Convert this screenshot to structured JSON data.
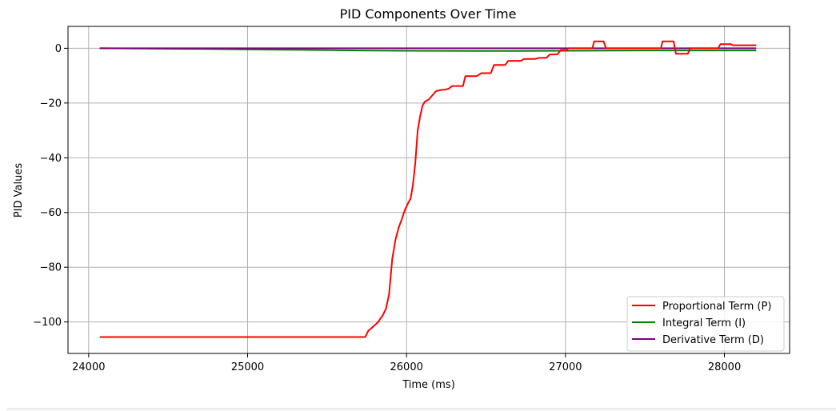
{
  "chart_data": {
    "type": "line",
    "title": "PID Components Over Time",
    "xlabel": "Time (ms)",
    "ylabel": "PID Values",
    "xlim": [
      23870,
      28410
    ],
    "ylim": [
      -111.5,
      8
    ],
    "x_ticks": [
      24000,
      25000,
      26000,
      27000,
      28000
    ],
    "y_ticks": [
      0,
      -20,
      -40,
      -60,
      -80,
      -100
    ],
    "x_tick_labels": [
      "24000",
      "25000",
      "26000",
      "27000",
      "28000"
    ],
    "y_tick_labels": [
      "0",
      "−20",
      "−40",
      "−60",
      "−80",
      "−100"
    ],
    "grid": true,
    "legend_position": "lower-right",
    "series": [
      {
        "name": "Proportional Term (P)",
        "color": "#ff0000",
        "points": [
          [
            24070,
            -105.5
          ],
          [
            25700,
            -105.5
          ],
          [
            25740,
            -105.5
          ],
          [
            25760,
            -103.2
          ],
          [
            25800,
            -101.2
          ],
          [
            25820,
            -100.1
          ],
          [
            25850,
            -97.6
          ],
          [
            25870,
            -95.2
          ],
          [
            25890,
            -90.0
          ],
          [
            25910,
            -77.0
          ],
          [
            25930,
            -70.0
          ],
          [
            25950,
            -65.5
          ],
          [
            25970,
            -62.5
          ],
          [
            25990,
            -59.0
          ],
          [
            26010,
            -56.5
          ],
          [
            26025,
            -55.0
          ],
          [
            26040,
            -50.0
          ],
          [
            26055,
            -42.0
          ],
          [
            26070,
            -30.0
          ],
          [
            26085,
            -25.0
          ],
          [
            26100,
            -21.0
          ],
          [
            26115,
            -19.5
          ],
          [
            26140,
            -18.7
          ],
          [
            26165,
            -17.0
          ],
          [
            26185,
            -15.7
          ],
          [
            26210,
            -15.3
          ],
          [
            26250,
            -15.0
          ],
          [
            26265,
            -14.8
          ],
          [
            26285,
            -13.8
          ],
          [
            26300,
            -13.8
          ],
          [
            26355,
            -13.8
          ],
          [
            26370,
            -10.2
          ],
          [
            26440,
            -10.2
          ],
          [
            26470,
            -9.1
          ],
          [
            26530,
            -9.1
          ],
          [
            26550,
            -6.1
          ],
          [
            26620,
            -6.1
          ],
          [
            26640,
            -4.6
          ],
          [
            26720,
            -4.6
          ],
          [
            26740,
            -3.9
          ],
          [
            26810,
            -3.9
          ],
          [
            26830,
            -3.5
          ],
          [
            26880,
            -3.5
          ],
          [
            26900,
            -2.3
          ],
          [
            26950,
            -2.2
          ],
          [
            26970,
            -0.7
          ],
          [
            27010,
            -0.7
          ],
          [
            27015,
            0.0
          ],
          [
            27170,
            0.0
          ],
          [
            27180,
            2.5
          ],
          [
            27240,
            2.5
          ],
          [
            27255,
            0.0
          ],
          [
            27600,
            0.0
          ],
          [
            27610,
            2.5
          ],
          [
            27680,
            2.5
          ],
          [
            27695,
            -2.0
          ],
          [
            27770,
            -2.0
          ],
          [
            27785,
            0.0
          ],
          [
            27960,
            0.0
          ],
          [
            27975,
            1.5
          ],
          [
            28040,
            1.5
          ],
          [
            28055,
            1.1
          ],
          [
            28200,
            1.1
          ]
        ]
      },
      {
        "name": "Integral Term (I)",
        "color": "#008000",
        "points": [
          [
            24070,
            0.0
          ],
          [
            24600,
            -0.2
          ],
          [
            25200,
            -0.5
          ],
          [
            25700,
            -0.8
          ],
          [
            26000,
            -0.9
          ],
          [
            26500,
            -1.0
          ],
          [
            27000,
            -0.9
          ],
          [
            27500,
            -0.8
          ],
          [
            28200,
            -0.8
          ]
        ]
      },
      {
        "name": "Derivative Term (D)",
        "color": "#800080",
        "points": [
          [
            24070,
            0.0
          ],
          [
            28200,
            0.0
          ]
        ]
      }
    ]
  }
}
